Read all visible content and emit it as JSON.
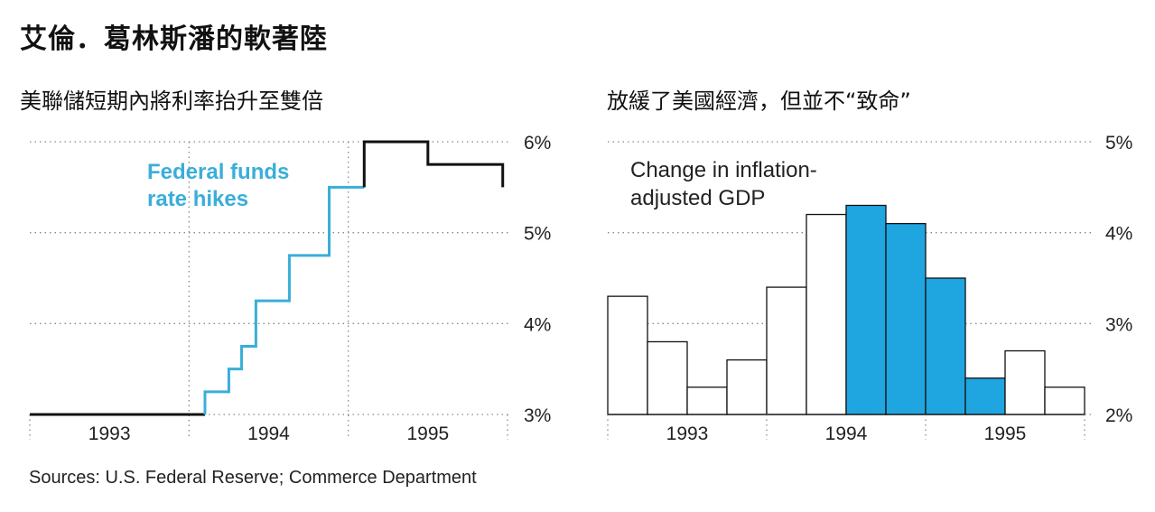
{
  "header": {
    "title": "艾倫．葛林斯潘的軟著陸",
    "subtitle_left": "美聯儲短期內將利率抬升至雙倍",
    "subtitle_right": "放緩了美國經濟，但並不“致命”"
  },
  "source": "Sources: U.S. Federal Reserve; Commerce Department",
  "chart_data": [
    {
      "type": "line",
      "step": true,
      "annotation": [
        "Federal funds",
        "rate hikes"
      ],
      "x_labels": [
        "1993",
        "1994",
        "1995"
      ],
      "y_ticks": [
        "3%",
        "4%",
        "5%",
        "6%"
      ],
      "ylim": [
        3,
        6
      ],
      "xlim": [
        1993.0,
        1996.0
      ],
      "x": [
        1993.0,
        1994.1,
        1994.1,
        1994.25,
        1994.25,
        1994.33,
        1994.33,
        1994.42,
        1994.42,
        1994.63,
        1994.63,
        1994.88,
        1994.88,
        1995.1,
        1995.1,
        1995.5,
        1995.5,
        1995.97,
        1995.97
      ],
      "y": [
        3.0,
        3.0,
        3.25,
        3.25,
        3.5,
        3.5,
        3.75,
        3.75,
        4.25,
        4.25,
        4.75,
        4.75,
        5.5,
        5.5,
        6.0,
        6.0,
        5.75,
        5.75,
        5.5
      ],
      "segments": [
        {
          "from": 0,
          "to": 1,
          "color": "#111111"
        },
        {
          "from": 1,
          "to": 13,
          "color": "#3aaed8"
        },
        {
          "from": 13,
          "to": 18,
          "color": "#111111"
        }
      ],
      "colors": {
        "highlight": "#3aaed8",
        "base": "#111111"
      }
    },
    {
      "type": "bar",
      "annotation": [
        "Change in inflation-",
        "adjusted GDP"
      ],
      "x_labels": [
        "1993",
        "1994",
        "1995"
      ],
      "y_ticks": [
        "2%",
        "3%",
        "4%",
        "5%"
      ],
      "ylim": [
        2,
        5
      ],
      "values": [
        3.3,
        2.8,
        2.3,
        2.6,
        3.4,
        4.2,
        4.3,
        4.1,
        3.5,
        2.4,
        2.7,
        2.3
      ],
      "highlight": [
        false,
        false,
        false,
        false,
        false,
        false,
        true,
        true,
        true,
        true,
        false,
        false
      ],
      "colors": {
        "highlight": "#1fa6e0",
        "base": "#ffffff",
        "stroke": "#111111"
      }
    }
  ]
}
